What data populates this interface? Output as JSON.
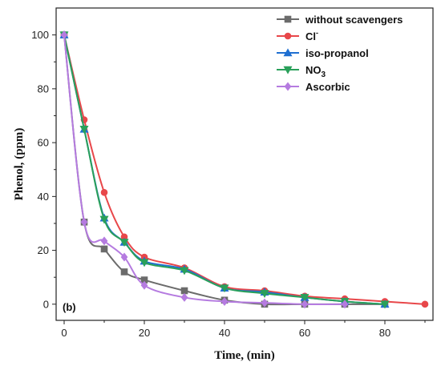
{
  "chart_data": {
    "type": "line",
    "title": "",
    "xlabel": "Time, (min)",
    "ylabel": "Phenol, (ppm)",
    "xlim": [
      -2,
      92
    ],
    "ylim": [
      -6,
      110
    ],
    "xticks": [
      0,
      20,
      40,
      60,
      80
    ],
    "yticks": [
      0,
      20,
      40,
      60,
      80,
      100
    ],
    "panel_label": "(b)",
    "legend_position": "top-right",
    "series": [
      {
        "name": "without scavengers",
        "color": "#6b6b6b",
        "marker": "square",
        "x": [
          0,
          5,
          10,
          15,
          20,
          30,
          40,
          50,
          60,
          70,
          80
        ],
        "y": [
          100,
          30.5,
          20.5,
          12,
          9,
          5,
          1.5,
          0,
          0,
          0,
          0
        ]
      },
      {
        "name": "Cl",
        "superscript": "-",
        "color": "#e8474a",
        "marker": "circle",
        "x": [
          0,
          5,
          10,
          15,
          20,
          30,
          40,
          50,
          60,
          70,
          80,
          90
        ],
        "y": [
          100,
          68.5,
          41.5,
          25,
          17.5,
          13.5,
          6.5,
          5,
          3,
          2,
          1,
          0
        ]
      },
      {
        "name": "iso-propanol",
        "color": "#1f6fd1",
        "marker": "triangle-up",
        "x": [
          0,
          5,
          10,
          15,
          20,
          30,
          40,
          50,
          60,
          70,
          80
        ],
        "y": [
          100,
          65,
          32,
          23,
          16,
          13,
          6,
          4.5,
          2.5,
          1,
          0
        ]
      },
      {
        "name": "NO",
        "subscript": "3",
        "color": "#2aa05a",
        "marker": "triangle-down",
        "x": [
          0,
          5,
          10,
          15,
          20,
          30,
          40,
          50,
          60,
          70,
          80
        ],
        "y": [
          100,
          65,
          31.5,
          23,
          15.5,
          12.5,
          6,
          4,
          2.5,
          1,
          0
        ]
      },
      {
        "name": "Ascorbic",
        "color": "#b57be0",
        "marker": "diamond",
        "x": [
          0,
          5,
          10,
          15,
          20,
          30,
          40,
          50,
          60,
          70
        ],
        "y": [
          100,
          30.5,
          23.5,
          17.5,
          7,
          2.5,
          1,
          0.5,
          0,
          0
        ]
      }
    ]
  }
}
